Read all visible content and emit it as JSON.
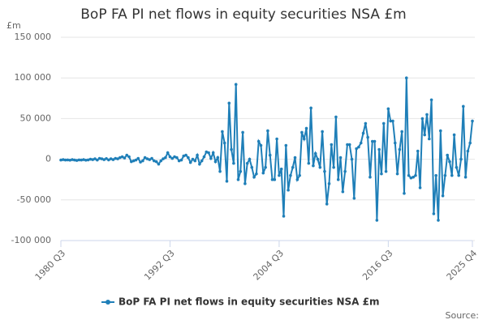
{
  "chart_data": {
    "type": "line",
    "title": "BoP FA PI net flows in equity securities NSA £m",
    "y_label": "£m",
    "source": "Source:",
    "categories": [
      "1980 Q3",
      null,
      null,
      null,
      null,
      null,
      null,
      null,
      null,
      null,
      null,
      null,
      null,
      null,
      null,
      null,
      null,
      null,
      null,
      null,
      null,
      null,
      null,
      null,
      null,
      null,
      null,
      null,
      null,
      null,
      null,
      null,
      null,
      null,
      null,
      null,
      null,
      null,
      null,
      null,
      null,
      null,
      null,
      null,
      null,
      null,
      null,
      null,
      "1992 Q3",
      null,
      null,
      null,
      null,
      null,
      null,
      null,
      null,
      null,
      null,
      null,
      null,
      null,
      null,
      null,
      null,
      null,
      null,
      null,
      null,
      null,
      null,
      null,
      null,
      null,
      null,
      null,
      null,
      null,
      null,
      null,
      null,
      null,
      null,
      null,
      null,
      null,
      null,
      null,
      null,
      null,
      null,
      null,
      null,
      null,
      null,
      null,
      "2004 Q3",
      null,
      null,
      null,
      null,
      null,
      null,
      null,
      null,
      null,
      null,
      null,
      null,
      null,
      null,
      null,
      null,
      null,
      null,
      null,
      null,
      null,
      null,
      null,
      null,
      null,
      null,
      null,
      null,
      null,
      null,
      null,
      null,
      null,
      null,
      null,
      null,
      null,
      null,
      null,
      null,
      null,
      null,
      null,
      null,
      null,
      null,
      null,
      "2016 Q3",
      null,
      null,
      null,
      null,
      null,
      null,
      null,
      null,
      null,
      null,
      null,
      null,
      null,
      null,
      null,
      null,
      null,
      null,
      null,
      null,
      null,
      null,
      null,
      null,
      null,
      null,
      null,
      null,
      null,
      null,
      null,
      null,
      null,
      null,
      null,
      null,
      "2025 Q4"
    ],
    "series": [
      {
        "name": "BoP FA PI net flows in equity securities NSA £m",
        "color": "#1f7fb8",
        "values": [
          -1000,
          -500,
          -1000,
          -800,
          -1200,
          -500,
          -1000,
          -1500,
          -800,
          -1000,
          -500,
          -1200,
          -800,
          0,
          -500,
          500,
          -1000,
          1000,
          500,
          -500,
          800,
          -800,
          500,
          -500,
          1000,
          500,
          2000,
          3000,
          1500,
          5000,
          3000,
          -3000,
          -2000,
          -1000,
          1000,
          -3500,
          -2000,
          2000,
          500,
          -500,
          1000,
          -2000,
          -3000,
          -6000,
          -2000,
          500,
          2000,
          8000,
          3000,
          1000,
          3000,
          2000,
          -2000,
          -1000,
          4000,
          5000,
          2000,
          -4000,
          0,
          -2000,
          5000,
          -6000,
          -2000,
          3000,
          9000,
          8000,
          1000,
          8000,
          -3000,
          2000,
          -15000,
          34000,
          20000,
          -27000,
          69000,
          12000,
          -5000,
          92000,
          -25000,
          -15000,
          33000,
          -30000,
          -5000,
          0,
          -10000,
          -22000,
          -18000,
          22000,
          17000,
          -17000,
          -10000,
          35000,
          5000,
          -25000,
          -25000,
          25000,
          -20000,
          -12000,
          -70000,
          17000,
          -38000,
          -20000,
          -10000,
          2000,
          -25000,
          -20000,
          33000,
          25000,
          38000,
          -5000,
          63000,
          -8000,
          7000,
          0,
          -10000,
          34000,
          -15000,
          -55000,
          -30000,
          18000,
          -10000,
          52000,
          -25000,
          2000,
          -40000,
          -15000,
          18000,
          18000,
          0,
          -48000,
          13000,
          15000,
          20000,
          32000,
          44000,
          27000,
          -22000,
          22000,
          22000,
          -75000,
          12000,
          -18000,
          44000,
          -15000,
          62000,
          47000,
          47000,
          20000,
          -18000,
          12000,
          34000,
          -42000,
          100000,
          -20000,
          -23000,
          -22000,
          -20000,
          10000,
          -35000,
          50000,
          30000,
          55000,
          25000,
          73000,
          -67000,
          -20000,
          -75000,
          35000,
          -45000,
          -20000,
          5000,
          -3000,
          -20000,
          30000,
          -10000,
          -20000,
          0,
          65000,
          -22000,
          10000,
          20000,
          47000
        ]
      }
    ],
    "ylim": [
      -100000,
      150000
    ],
    "yticks": [
      {
        "value": -100000,
        "label": "-100 000"
      },
      {
        "value": -50000,
        "label": "-50 000"
      },
      0,
      {
        "value": 50000,
        "label": "50 000"
      },
      {
        "value": 100000,
        "label": "100 000"
      },
      {
        "value": 150000,
        "label": "150 000"
      }
    ],
    "grid": true
  }
}
